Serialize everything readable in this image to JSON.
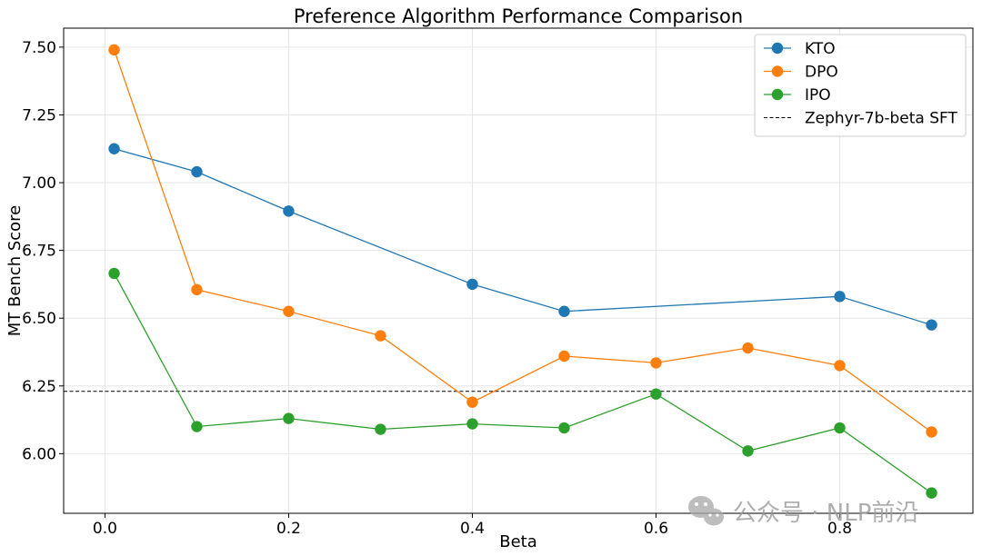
{
  "chart_data": {
    "type": "line",
    "title": "Preference Algorithm Performance Comparison",
    "xlabel": "Beta",
    "ylabel": "MT Bench Score",
    "xlim": [
      -0.045,
      0.945
    ],
    "ylim": [
      5.78,
      7.57
    ],
    "x_ticks": [
      0.0,
      0.2,
      0.4,
      0.6,
      0.8
    ],
    "x_tick_labels": [
      "0.0",
      "0.2",
      "0.4",
      "0.6",
      "0.8"
    ],
    "y_ticks": [
      6.0,
      6.25,
      6.5,
      6.75,
      7.0,
      7.25,
      7.5
    ],
    "y_tick_labels": [
      "6.00",
      "6.25",
      "6.50",
      "6.75",
      "7.00",
      "7.25",
      "7.50"
    ],
    "grid": true,
    "legend_position": "top-right",
    "series": [
      {
        "name": "KTO",
        "color": "#1f77b4",
        "x": [
          0.01,
          0.1,
          0.2,
          0.4,
          0.5,
          0.8,
          0.9
        ],
        "values": [
          7.125,
          7.04,
          6.895,
          6.625,
          6.525,
          6.58,
          6.475
        ]
      },
      {
        "name": "DPO",
        "color": "#ff7f0e",
        "x": [
          0.01,
          0.1,
          0.2,
          0.3,
          0.4,
          0.5,
          0.6,
          0.7,
          0.8,
          0.9
        ],
        "values": [
          7.49,
          6.605,
          6.525,
          6.435,
          6.19,
          6.36,
          6.335,
          6.39,
          6.325,
          6.08
        ]
      },
      {
        "name": "IPO",
        "color": "#2ca02c",
        "x": [
          0.01,
          0.1,
          0.2,
          0.3,
          0.4,
          0.5,
          0.6,
          0.7,
          0.8,
          0.9
        ],
        "values": [
          6.665,
          6.1,
          6.13,
          6.09,
          6.11,
          6.095,
          6.22,
          6.01,
          6.095,
          5.855
        ]
      }
    ],
    "reference_line": {
      "name": "Zephyr-7b-beta SFT",
      "value": 6.23,
      "color": "#000000",
      "style": "dashed"
    }
  },
  "watermark": {
    "text": "公众号 · NLP前沿",
    "icon": "wechat-icon"
  }
}
